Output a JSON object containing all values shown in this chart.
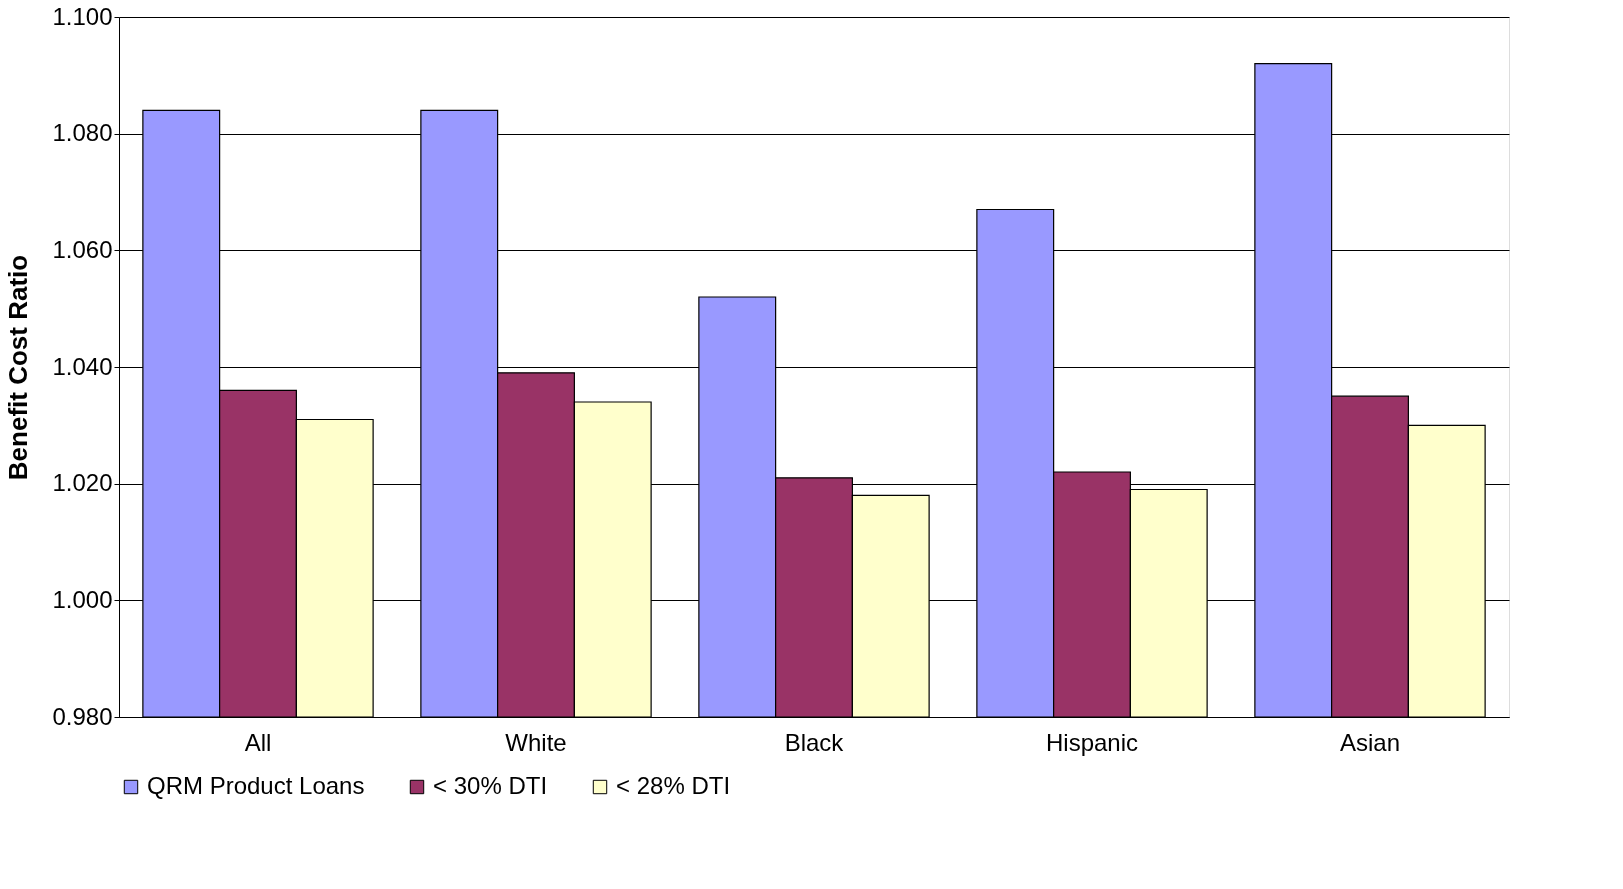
{
  "chart_data": {
    "type": "bar",
    "ylabel": "Benefit Cost Ratio",
    "categories": [
      "All",
      "White",
      "Black",
      "Hispanic",
      "Asian"
    ],
    "series": [
      {
        "name": "QRM Product Loans",
        "color": "#9999ff",
        "values": [
          1.084,
          1.084,
          1.052,
          1.067,
          1.092
        ]
      },
      {
        "name": "< 30% DTI",
        "color": "#993366",
        "values": [
          1.036,
          1.039,
          1.021,
          1.022,
          1.035
        ]
      },
      {
        "name": "< 28% DTI",
        "color": "#ffffcc",
        "values": [
          1.031,
          1.034,
          1.018,
          1.019,
          1.03
        ]
      }
    ],
    "ylim": [
      0.98,
      1.1
    ],
    "yticks": [
      {
        "value": 0.98,
        "label": "0.980"
      },
      {
        "value": 1.0,
        "label": "1.000"
      },
      {
        "value": 1.02,
        "label": "1.020"
      },
      {
        "value": 1.04,
        "label": "1.040"
      },
      {
        "value": 1.06,
        "label": "1.060"
      },
      {
        "value": 1.08,
        "label": "1.080"
      },
      {
        "value": 1.1,
        "label": "1.100"
      }
    ],
    "grid": "y",
    "legend": "bottom"
  }
}
